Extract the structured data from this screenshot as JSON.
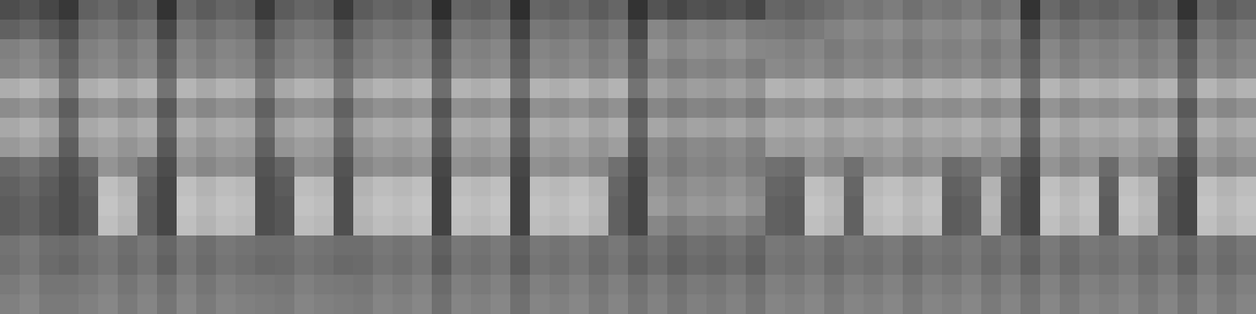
{
  "chart_data": {
    "type": "heatmap",
    "tick_labels": false,
    "zlim": [
      0,
      100
    ],
    "z": [
      [
        30,
        33,
        28,
        22,
        38,
        41,
        36,
        40,
        20,
        41,
        36,
        40,
        38,
        23,
        36,
        40,
        38,
        23,
        36,
        40,
        38,
        41,
        18,
        40,
        38,
        41,
        18,
        40,
        38,
        41,
        36,
        40,
        20,
        33,
        28,
        32,
        30,
        33,
        28,
        40,
        38,
        41,
        44,
        48,
        46,
        49,
        44,
        48,
        46,
        49,
        44,
        48,
        20,
        41,
        36,
        40,
        38,
        41,
        36,
        40,
        20,
        41,
        36,
        40
      ],
      [
        38,
        41,
        36,
        30,
        45,
        48,
        43,
        47,
        28,
        48,
        43,
        47,
        45,
        31,
        43,
        47,
        45,
        31,
        43,
        47,
        45,
        48,
        26,
        47,
        45,
        48,
        26,
        47,
        45,
        48,
        43,
        47,
        28,
        53,
        48,
        52,
        50,
        53,
        48,
        47,
        45,
        48,
        51,
        55,
        53,
        56,
        51,
        55,
        53,
        56,
        51,
        55,
        28,
        48,
        43,
        47,
        45,
        48,
        43,
        47,
        28,
        48,
        43,
        47
      ],
      [
        50,
        53,
        48,
        37,
        50,
        53,
        48,
        52,
        35,
        53,
        48,
        52,
        50,
        38,
        48,
        52,
        50,
        38,
        48,
        52,
        50,
        53,
        33,
        52,
        50,
        53,
        33,
        52,
        50,
        53,
        48,
        52,
        35,
        58,
        53,
        57,
        55,
        58,
        53,
        52,
        50,
        53,
        48,
        52,
        50,
        53,
        48,
        52,
        50,
        53,
        48,
        52,
        35,
        53,
        48,
        52,
        50,
        53,
        48,
        52,
        35,
        53,
        48,
        52
      ],
      [
        52,
        55,
        50,
        40,
        52,
        55,
        50,
        54,
        38,
        55,
        50,
        54,
        52,
        41,
        50,
        54,
        52,
        41,
        50,
        54,
        52,
        55,
        36,
        54,
        52,
        55,
        36,
        54,
        52,
        55,
        50,
        54,
        38,
        53,
        48,
        52,
        50,
        53,
        48,
        54,
        52,
        55,
        50,
        54,
        52,
        55,
        50,
        54,
        52,
        55,
        50,
        54,
        38,
        55,
        50,
        54,
        52,
        55,
        50,
        54,
        38,
        55,
        50,
        54
      ],
      [
        68,
        71,
        66,
        47,
        68,
        71,
        66,
        70,
        45,
        71,
        66,
        70,
        68,
        48,
        66,
        70,
        68,
        48,
        66,
        70,
        68,
        71,
        43,
        70,
        68,
        71,
        43,
        70,
        68,
        71,
        66,
        70,
        45,
        63,
        58,
        62,
        60,
        63,
        58,
        70,
        68,
        71,
        66,
        70,
        68,
        71,
        66,
        70,
        68,
        71,
        66,
        70,
        45,
        71,
        66,
        70,
        68,
        71,
        66,
        70,
        45,
        71,
        66,
        70
      ],
      [
        55,
        58,
        53,
        37,
        55,
        58,
        53,
        57,
        35,
        58,
        53,
        57,
        55,
        38,
        53,
        57,
        55,
        38,
        53,
        57,
        55,
        58,
        33,
        57,
        55,
        58,
        33,
        57,
        55,
        58,
        53,
        57,
        35,
        53,
        48,
        52,
        50,
        53,
        48,
        57,
        55,
        58,
        53,
        57,
        55,
        58,
        53,
        57,
        55,
        58,
        53,
        57,
        35,
        58,
        53,
        57,
        55,
        58,
        53,
        57,
        35,
        58,
        53,
        57
      ],
      [
        66,
        69,
        64,
        42,
        66,
        69,
        64,
        68,
        40,
        69,
        64,
        68,
        66,
        43,
        64,
        68,
        66,
        43,
        64,
        68,
        66,
        69,
        38,
        68,
        66,
        69,
        38,
        68,
        66,
        69,
        64,
        68,
        40,
        65,
        60,
        64,
        62,
        65,
        60,
        68,
        66,
        69,
        64,
        68,
        66,
        69,
        64,
        68,
        66,
        69,
        64,
        68,
        40,
        69,
        64,
        68,
        66,
        69,
        64,
        68,
        40,
        69,
        64,
        68
      ],
      [
        60,
        63,
        58,
        37,
        60,
        63,
        58,
        62,
        35,
        63,
        58,
        62,
        60,
        38,
        58,
        62,
        60,
        38,
        58,
        62,
        60,
        63,
        33,
        62,
        60,
        63,
        33,
        62,
        60,
        63,
        58,
        62,
        35,
        55,
        50,
        54,
        52,
        55,
        50,
        62,
        60,
        63,
        58,
        62,
        60,
        63,
        58,
        62,
        60,
        63,
        58,
        62,
        35,
        63,
        58,
        62,
        60,
        63,
        58,
        62,
        35,
        63,
        58,
        62
      ],
      [
        42,
        45,
        40,
        32,
        42,
        58,
        53,
        44,
        30,
        58,
        53,
        57,
        55,
        33,
        40,
        57,
        55,
        33,
        53,
        57,
        55,
        58,
        28,
        57,
        55,
        58,
        28,
        57,
        55,
        58,
        53,
        44,
        30,
        53,
        48,
        52,
        50,
        53,
        48,
        44,
        42,
        58,
        53,
        44,
        55,
        58,
        53,
        57,
        42,
        45,
        53,
        44,
        30,
        58,
        53,
        57,
        42,
        58,
        53,
        44,
        30,
        58,
        53,
        57
      ],
      [
        38,
        41,
        36,
        30,
        38,
        75,
        70,
        40,
        28,
        75,
        70,
        74,
        72,
        31,
        36,
        74,
        72,
        31,
        70,
        74,
        72,
        75,
        26,
        74,
        72,
        75,
        26,
        74,
        72,
        75,
        70,
        40,
        28,
        58,
        53,
        57,
        55,
        58,
        53,
        40,
        38,
        75,
        70,
        40,
        72,
        75,
        70,
        74,
        38,
        41,
        70,
        40,
        28,
        75,
        70,
        74,
        38,
        75,
        70,
        40,
        28,
        75,
        70,
        74
      ],
      [
        36,
        39,
        34,
        30,
        36,
        77,
        72,
        38,
        28,
        77,
        72,
        76,
        74,
        31,
        34,
        76,
        74,
        31,
        72,
        76,
        74,
        77,
        26,
        76,
        74,
        77,
        26,
        76,
        74,
        77,
        72,
        38,
        28,
        61,
        56,
        60,
        58,
        61,
        56,
        38,
        36,
        77,
        72,
        38,
        74,
        77,
        72,
        76,
        36,
        39,
        72,
        38,
        28,
        77,
        72,
        76,
        36,
        77,
        72,
        38,
        28,
        77,
        72,
        76
      ],
      [
        36,
        39,
        34,
        30,
        36,
        75,
        70,
        38,
        28,
        75,
        70,
        74,
        72,
        31,
        34,
        74,
        72,
        31,
        70,
        74,
        72,
        75,
        26,
        74,
        72,
        75,
        26,
        74,
        72,
        75,
        70,
        38,
        28,
        53,
        48,
        52,
        50,
        53,
        48,
        38,
        36,
        75,
        70,
        38,
        72,
        75,
        70,
        74,
        36,
        39,
        70,
        38,
        28,
        75,
        70,
        74,
        36,
        75,
        70,
        38,
        28,
        75,
        70,
        74
      ],
      [
        45,
        48,
        43,
        42,
        45,
        48,
        43,
        47,
        40,
        48,
        43,
        47,
        45,
        43,
        43,
        47,
        45,
        43,
        43,
        47,
        45,
        48,
        38,
        47,
        45,
        48,
        38,
        47,
        45,
        48,
        43,
        47,
        40,
        45,
        40,
        44,
        42,
        45,
        40,
        47,
        45,
        48,
        43,
        47,
        45,
        48,
        43,
        47,
        45,
        48,
        43,
        47,
        40,
        48,
        43,
        47,
        45,
        48,
        43,
        47,
        40,
        48,
        43,
        47
      ],
      [
        44,
        47,
        42,
        40,
        44,
        47,
        42,
        46,
        38,
        47,
        42,
        46,
        44,
        41,
        42,
        46,
        44,
        41,
        42,
        46,
        44,
        47,
        36,
        46,
        44,
        47,
        36,
        46,
        44,
        47,
        42,
        46,
        38,
        43,
        38,
        42,
        40,
        43,
        38,
        46,
        44,
        47,
        42,
        46,
        44,
        47,
        42,
        46,
        44,
        47,
        42,
        46,
        38,
        47,
        42,
        46,
        44,
        47,
        42,
        46,
        38,
        47,
        42,
        46
      ],
      [
        48,
        51,
        46,
        46,
        48,
        51,
        46,
        50,
        44,
        51,
        46,
        50,
        48,
        47,
        46,
        50,
        48,
        47,
        46,
        50,
        48,
        51,
        42,
        50,
        48,
        51,
        42,
        50,
        48,
        51,
        46,
        50,
        44,
        49,
        44,
        48,
        46,
        49,
        44,
        50,
        48,
        51,
        46,
        50,
        48,
        51,
        46,
        50,
        48,
        51,
        46,
        50,
        44,
        51,
        46,
        50,
        48,
        51,
        46,
        50,
        44,
        51,
        46,
        50
      ],
      [
        50,
        53,
        48,
        48,
        50,
        53,
        48,
        52,
        46,
        53,
        48,
        52,
        50,
        49,
        48,
        52,
        50,
        49,
        48,
        52,
        50,
        53,
        44,
        52,
        50,
        53,
        44,
        52,
        50,
        53,
        48,
        52,
        46,
        51,
        46,
        50,
        48,
        51,
        46,
        52,
        50,
        53,
        48,
        52,
        50,
        53,
        48,
        52,
        50,
        53,
        48,
        52,
        46,
        53,
        48,
        52,
        50,
        53,
        48,
        52,
        46,
        53,
        48,
        52
      ]
    ]
  }
}
